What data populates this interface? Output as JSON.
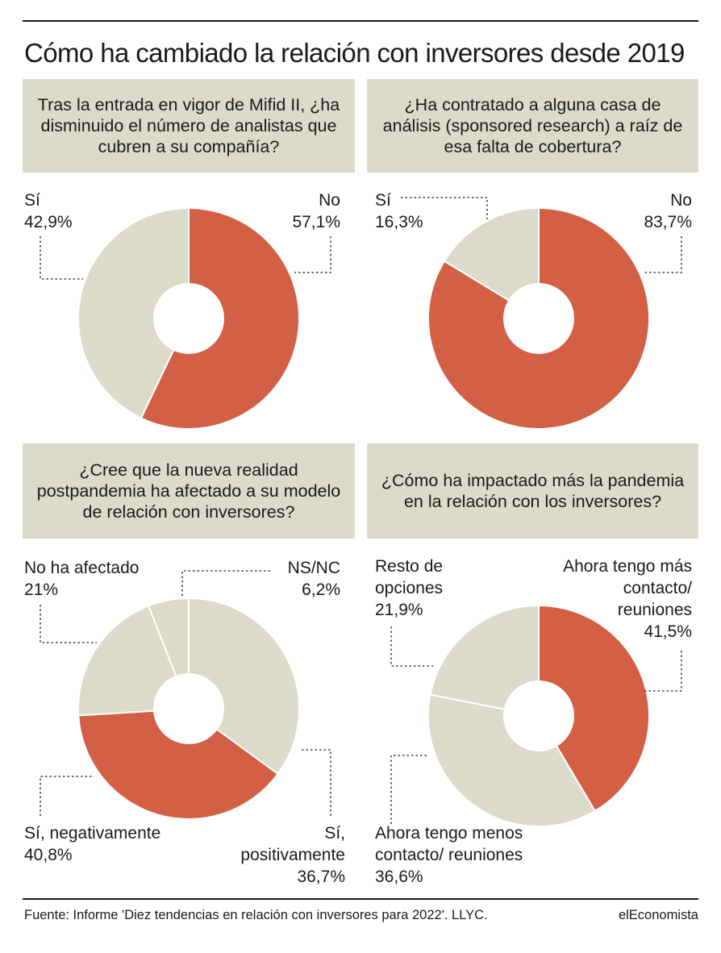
{
  "title": "Cómo ha cambiado la relación con inversores desde 2019",
  "source": "Fuente: Informe 'Diez tendencias en relación con inversores para 2022'. LLYC.",
  "brand": "elEconomista",
  "colors": {
    "red": "#d35f44",
    "beige": "#dcdacb",
    "box": "#dcdacb",
    "text": "#1a1a1a"
  },
  "chart_data": [
    {
      "type": "pie",
      "title": "Tras la entrada en vigor de Mifid II, ¿ha disminuido el número de analistas que cubren a su compañía?",
      "slices": [
        {
          "label": "No",
          "value": 57.1,
          "value_label": "57,1%",
          "color": "#d35f44"
        },
        {
          "label": "Sí",
          "value": 42.9,
          "value_label": "42,9%",
          "color": "#dcdacb"
        }
      ]
    },
    {
      "type": "pie",
      "title": "¿Ha contratado a alguna casa de análisis (sponsored research) a raíz de esa falta de cobertura?",
      "slices": [
        {
          "label": "No",
          "value": 83.7,
          "value_label": "83,7%",
          "color": "#d35f44"
        },
        {
          "label": "Sí",
          "value": 16.3,
          "value_label": "16,3%",
          "color": "#dcdacb"
        }
      ]
    },
    {
      "type": "pie",
      "title": "¿Cree que la nueva realidad postpandemia ha afectado a su modelo de relación con inversores?",
      "slices": [
        {
          "label": "Sí, positivamente",
          "value": 36.7,
          "value_label": "36,7%",
          "color": "#dcdacb"
        },
        {
          "label": "Sí, negativamente",
          "value": 40.8,
          "value_label": "40,8%",
          "color": "#d35f44"
        },
        {
          "label": "No ha afectado",
          "value": 21,
          "value_label": "21%",
          "color": "#dcdacb"
        },
        {
          "label": "NS/NC",
          "value": 6.2,
          "value_label": "6,2%",
          "color": "#dcdacb"
        }
      ]
    },
    {
      "type": "pie",
      "title": "¿Cómo ha impactado más la pandemia en la relación con los inversores?",
      "slices": [
        {
          "label": "Ahora tengo más contacto/ reuniones",
          "value": 41.5,
          "value_label": "41,5%",
          "color": "#d35f44"
        },
        {
          "label": "Ahora tengo menos contacto/ reuniones",
          "value": 36.6,
          "value_label": "36,6%",
          "color": "#dcdacb"
        },
        {
          "label": "Resto de opciones",
          "value": 21.9,
          "value_label": "21,9%",
          "color": "#dcdacb"
        }
      ]
    }
  ]
}
